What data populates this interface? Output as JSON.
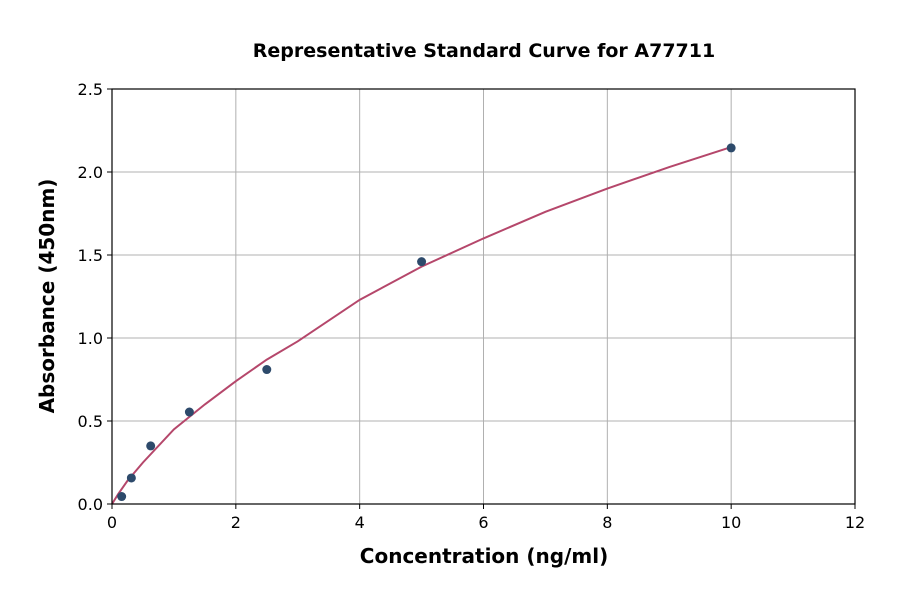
{
  "chart_data": {
    "type": "scatter",
    "title": "Representative Standard Curve for A77711",
    "xlabel": "Concentration (ng/ml)",
    "ylabel": "Absorbance (450nm)",
    "xlim": [
      0,
      12
    ],
    "ylim": [
      0,
      2.5
    ],
    "xticks": [
      0,
      2,
      4,
      6,
      8,
      10,
      12
    ],
    "yticks": [
      0.0,
      0.5,
      1.0,
      1.5,
      2.0,
      2.5
    ],
    "ytick_labels": [
      "0.0",
      "0.5",
      "1.0",
      "1.5",
      "2.0",
      "2.5"
    ],
    "grid": true,
    "points": {
      "x": [
        0.156,
        0.313,
        0.625,
        1.25,
        2.5,
        5,
        10
      ],
      "y": [
        0.045,
        0.157,
        0.35,
        0.554,
        0.81,
        1.46,
        2.145
      ],
      "color": "#2d4a6b"
    },
    "fit_curve": {
      "x": [
        0,
        0.1,
        0.25,
        0.5,
        1,
        1.5,
        2,
        2.5,
        3,
        4,
        5,
        6,
        7,
        8,
        9,
        10
      ],
      "y": [
        0,
        0.06,
        0.14,
        0.25,
        0.45,
        0.6,
        0.74,
        0.87,
        0.98,
        1.23,
        1.43,
        1.6,
        1.76,
        1.9,
        2.03,
        2.15
      ],
      "color": "#b5476b"
    }
  }
}
